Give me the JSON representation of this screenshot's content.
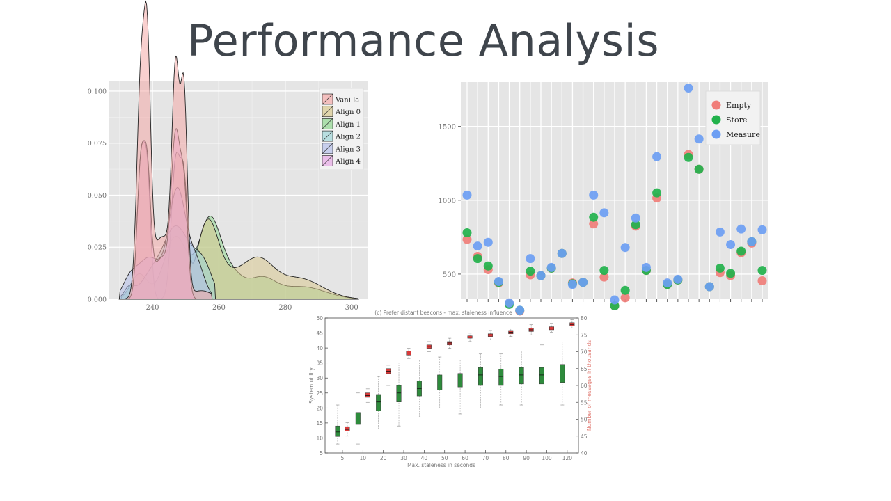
{
  "title": "Performance Analysis",
  "chart_data": [
    {
      "type": "area",
      "name_hint": "density",
      "xlim": [
        227,
        305
      ],
      "ylim": [
        0,
        0.105
      ],
      "x_ticks": [
        240,
        260,
        280,
        300
      ],
      "y_ticks": [
        0.0,
        0.025,
        0.05,
        0.075,
        0.1
      ],
      "y_tick_labels": [
        "0.000",
        "0.025",
        "0.050",
        "0.075",
        "0.100"
      ],
      "grid": true,
      "legend_position": "top-right",
      "series": [
        {
          "name": "Vanilla",
          "color": "#F4A9A8",
          "peaks": [
            [
              236.5,
              0.1,
              1.2
            ],
            [
              238.5,
              0.098,
              1.0
            ],
            [
              247,
              0.097,
              1.1
            ],
            [
              249.5,
              0.093,
              1.0
            ],
            [
              243,
              0.03,
              3.5
            ],
            [
              255,
              0.004,
              3
            ]
          ],
          "range": [
            230.5,
            258
          ]
        },
        {
          "name": "Align 0",
          "color": "#D8C98F",
          "peaks": [
            [
              236.5,
              0.064,
              1.1
            ],
            [
              238.5,
              0.055,
              1.0
            ],
            [
              247,
              0.065,
              1.3
            ],
            [
              249.5,
              0.05,
              1.1
            ],
            [
              256.5,
              0.034,
              3.2
            ],
            [
              263,
              0.01,
              5
            ],
            [
              272,
              0.016,
              4.5
            ],
            [
              284,
              0.01,
              7
            ]
          ],
          "range": [
            230.5,
            302
          ]
        },
        {
          "name": "Align 1",
          "color": "#8FD68F",
          "peaks": [
            [
              236,
              0.012,
              2.5
            ],
            [
              247,
              0.03,
              3.5
            ],
            [
              257,
              0.035,
              3.2
            ],
            [
              263,
              0.013,
              4
            ],
            [
              273,
              0.009,
              4
            ],
            [
              285,
              0.006,
              7
            ]
          ],
          "range": [
            230.5,
            302
          ]
        },
        {
          "name": "Align 2",
          "color": "#9FD6D9",
          "peaks": [
            [
              233,
              0.005,
              1.5
            ],
            [
              240,
              0.012,
              3.5
            ],
            [
              247,
              0.032,
              3.5
            ],
            [
              253,
              0.012,
              3
            ],
            [
              256,
              0.01,
              2.5
            ]
          ],
          "range": [
            230,
            259
          ]
        },
        {
          "name": "Align 3",
          "color": "#B5BFEA",
          "peaks": [
            [
              233,
              0.006,
              2
            ],
            [
              239,
              0.02,
              4
            ],
            [
              247.5,
              0.05,
              2.5
            ],
            [
              253,
              0.018,
              2.5
            ]
          ],
          "range": [
            230,
            258
          ]
        },
        {
          "name": "Align 4",
          "color": "#E7A8E5",
          "peaks": [
            [
              236.5,
              0.062,
              1.1
            ],
            [
              238.5,
              0.052,
              1.0
            ],
            [
              247,
              0.07,
              1.3
            ],
            [
              249.5,
              0.048,
              1.1
            ],
            [
              243,
              0.02,
              3
            ]
          ],
          "range": [
            230.5,
            258
          ]
        }
      ]
    },
    {
      "type": "scatter",
      "ylim": [
        330,
        1800
      ],
      "y_ticks": [
        500,
        1000,
        1500
      ],
      "x_count": 29,
      "grid": true,
      "legend_position": "top-right",
      "series": [
        {
          "name": "Empty",
          "color": "#F07E7A",
          "values": [
            735,
            620,
            530,
            440,
            300,
            250,
            495,
            490,
            540,
            640,
            440,
            445,
            840,
            480,
            285,
            340,
            825,
            525,
            1015,
            430,
            460,
            1310,
            1210,
            415,
            510,
            490,
            645,
            710,
            455
          ]
        },
        {
          "name": "Store",
          "color": "#22B24C",
          "values": [
            780,
            605,
            555,
            445,
            295,
            255,
            520,
            490,
            540,
            640,
            435,
            445,
            885,
            525,
            285,
            390,
            835,
            525,
            1050,
            430,
            460,
            1290,
            1210,
            415,
            540,
            505,
            655,
            720,
            525
          ]
        },
        {
          "name": "Measure",
          "color": "#6C9EF3",
          "values": [
            1035,
            690,
            715,
            450,
            305,
            255,
            605,
            490,
            545,
            640,
            430,
            445,
            1035,
            915,
            325,
            680,
            880,
            545,
            1295,
            440,
            465,
            1760,
            1415,
            415,
            785,
            700,
            805,
            720,
            800
          ]
        }
      ]
    },
    {
      "type": "box",
      "title": "(c) Prefer distant beacons - max. staleness influence",
      "xlabel": "Max. staleness in seconds",
      "ylabel_left": "System utility",
      "ylabel_right": "Number of messages in thousands",
      "categories": [
        "5",
        "10",
        "20",
        "30",
        "40",
        "50",
        "60",
        "70",
        "80",
        "90",
        "100",
        "120"
      ],
      "ylim_left": [
        5,
        50
      ],
      "ylim_right": [
        40,
        80
      ],
      "y_ticks_left": [
        5,
        10,
        15,
        20,
        25,
        30,
        35,
        40,
        45,
        50
      ],
      "y_ticks_right": [
        40,
        45,
        50,
        55,
        60,
        65,
        70,
        75,
        80
      ],
      "series": [
        {
          "name": "System utility",
          "axis": "left",
          "color": "#2E8B3C",
          "boxes": [
            [
              8,
              10.5,
              12,
              14,
              21
            ],
            [
              8,
              14.5,
              16,
              18.5,
              25
            ],
            [
              13,
              19,
              22,
              24.5,
              30.5
            ],
            [
              14,
              22,
              25,
              27.5,
              35
            ],
            [
              17,
              24,
              26.5,
              29,
              36
            ],
            [
              20,
              26,
              29,
              31,
              37
            ],
            [
              18,
              27,
              29,
              31.5,
              36
            ],
            [
              20,
              27.5,
              31,
              33.5,
              38
            ],
            [
              21,
              27.5,
              30.5,
              33,
              38
            ],
            [
              21,
              28,
              31,
              33.5,
              39
            ],
            [
              23,
              28,
              31,
              33.5,
              41
            ],
            [
              21,
              28.5,
              32,
              34.5,
              42
            ]
          ]
        },
        {
          "name": "Number of messages in thousands",
          "axis": "right",
          "color": "#D83A3A",
          "boxes": [
            [
              45,
              46.5,
              47,
              47.8,
              49
            ],
            [
              55,
              56.5,
              57,
              57.8,
              59
            ],
            [
              60,
              63.5,
              64.2,
              65,
              66
            ],
            [
              68,
              69,
              69.6,
              70.2,
              71
            ],
            [
              70,
              71,
              71.5,
              72,
              73
            ],
            [
              71,
              72,
              72.6,
              73,
              74
            ],
            [
              73,
              74,
              74.3,
              74.7,
              75.5
            ],
            [
              73.5,
              74.5,
              75,
              75.3,
              76.3
            ],
            [
              74.5,
              75.3,
              75.8,
              76.3,
              77
            ],
            [
              75,
              76,
              76.5,
              77,
              78
            ],
            [
              75.8,
              76.5,
              77,
              77.4,
              78.4
            ],
            [
              77,
              77.6,
              78.1,
              78.6,
              79.5
            ]
          ]
        }
      ]
    }
  ]
}
